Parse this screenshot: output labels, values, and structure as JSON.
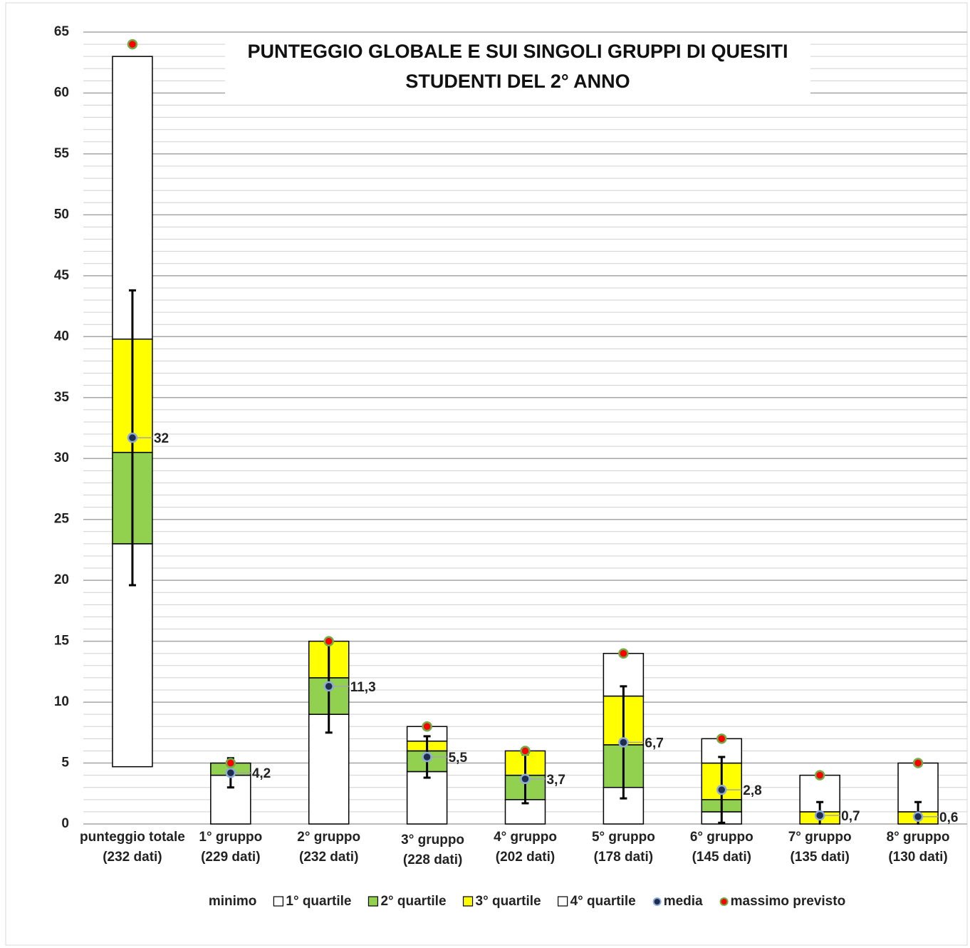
{
  "chart_data": {
    "type": "stacked_bar",
    "title": [
      "PUNTEGGIO GLOBALE E SUI SINGOLI GRUPPI  DI QUESITI",
      "STUDENTI DEL 2° ANNO"
    ],
    "categories": [
      [
        "punteggio totale",
        "(232 dati)"
      ],
      [
        "1° gruppo",
        "(229 dati)"
      ],
      [
        "2° gruppo",
        "(232 dati)"
      ],
      [
        "3° gruppo",
        "(228 dati)"
      ],
      [
        "4° gruppo",
        "(202 dati)"
      ],
      [
        "5° gruppo",
        "(178 dati)"
      ],
      [
        "6° gruppo",
        "(145 dati)"
      ],
      [
        "7° gruppo",
        "(135 dati)"
      ],
      [
        "8° gruppo",
        "(130 dati)"
      ]
    ],
    "series": [
      {
        "name": "minimo",
        "color": "none",
        "values": [
          4.7,
          0,
          0,
          0,
          0,
          0,
          0,
          0,
          0
        ]
      },
      {
        "name": "1° quartile",
        "color": "#ffffff",
        "values": [
          18.3,
          4,
          9,
          4.3,
          2,
          3,
          1,
          0,
          0
        ]
      },
      {
        "name": "2° quartile",
        "color": "#92d050",
        "values": [
          7.5,
          1,
          3,
          1.7,
          2,
          3.5,
          1,
          0,
          0
        ]
      },
      {
        "name": "3° quartile",
        "color": "#ffff00",
        "values": [
          9.3,
          0,
          3,
          0.8,
          2,
          4,
          3,
          1,
          1
        ]
      },
      {
        "name": "4° quartile",
        "color": "#ffffff",
        "values": [
          23.2,
          0,
          0,
          1.2,
          0,
          3.5,
          2,
          3,
          4
        ]
      }
    ],
    "media": {
      "name": "media",
      "color": "#1f2d4d",
      "values": [
        31.7,
        4.2,
        11.3,
        5.5,
        3.7,
        6.7,
        2.8,
        0.7,
        0.6
      ],
      "value_labels": [
        "32",
        "4,2",
        "11,3",
        "5,5",
        "3,7",
        "6,7",
        "2,8",
        "0,7",
        "0,6"
      ],
      "errors": [
        12.1,
        1.2,
        3.8,
        1.7,
        2.0,
        4.6,
        2.7,
        1.1,
        1.2
      ]
    },
    "massimo": {
      "name": "massimo previsto",
      "color": "#ff0000",
      "values": [
        64,
        5,
        15,
        8,
        6,
        14,
        7,
        4,
        5
      ]
    },
    "ylim": [
      0,
      65
    ],
    "yticks": [
      0,
      5,
      10,
      15,
      20,
      25,
      30,
      35,
      40,
      45,
      50,
      55,
      60,
      65
    ],
    "minor_grid_step": 1,
    "grid": true,
    "legend": "bottom"
  }
}
